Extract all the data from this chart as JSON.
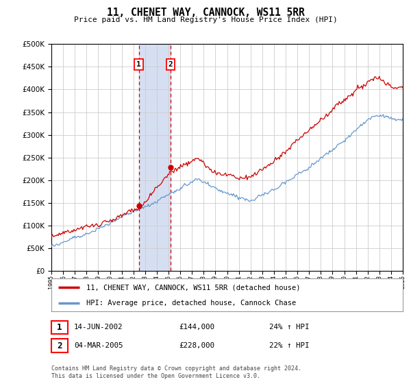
{
  "title": "11, CHENET WAY, CANNOCK, WS11 5RR",
  "subtitle": "Price paid vs. HM Land Registry's House Price Index (HPI)",
  "legend_line1": "11, CHENET WAY, CANNOCK, WS11 5RR (detached house)",
  "legend_line2": "HPI: Average price, detached house, Cannock Chase",
  "transaction1_date": "14-JUN-2002",
  "transaction1_price": "£144,000",
  "transaction1_hpi": "24% ↑ HPI",
  "transaction2_date": "04-MAR-2005",
  "transaction2_price": "£228,000",
  "transaction2_hpi": "22% ↑ HPI",
  "footer": "Contains HM Land Registry data © Crown copyright and database right 2024.\nThis data is licensed under the Open Government Licence v3.0.",
  "red_color": "#cc0000",
  "blue_color": "#6699cc",
  "shading_color": "#ccd8ee",
  "grid_color": "#cccccc",
  "background_color": "#ffffff",
  "ylim": [
    0,
    500000
  ],
  "yticks": [
    0,
    50000,
    100000,
    150000,
    200000,
    250000,
    300000,
    350000,
    400000,
    450000,
    500000
  ],
  "year_start": 1995,
  "year_end": 2025,
  "t1_year": 2002.46,
  "t1_price": 144000,
  "t2_year": 2005.17,
  "t2_price": 228000
}
